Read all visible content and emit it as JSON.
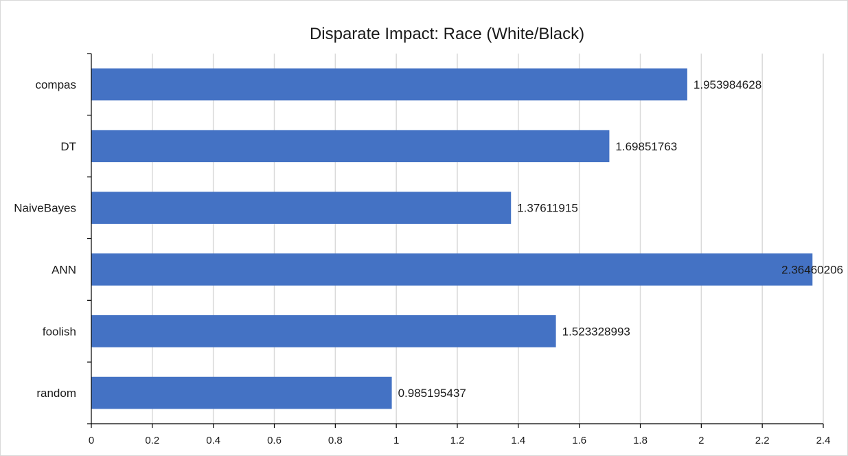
{
  "chart_data": {
    "type": "bar",
    "orientation": "horizontal",
    "title": "Disparate Impact: Race (White/Black)",
    "xlabel": "",
    "ylabel": "",
    "categories": [
      "compas",
      "DT",
      "NaiveBayes",
      "ANN",
      "foolish",
      "random"
    ],
    "values": [
      1.953984628,
      1.69851763,
      1.37611915,
      2.36460206,
      1.523328993,
      0.985195437
    ],
    "value_labels": [
      "1.953984628",
      "1.69851763",
      "1.37611915",
      "2.36460206",
      "1.523328993",
      "0.985195437"
    ],
    "xlim": [
      0,
      2.4
    ],
    "x_ticks": [
      "0",
      "0.2",
      "0.4",
      "0.6",
      "0.8",
      "1",
      "1.2",
      "1.4",
      "1.6",
      "1.8",
      "2",
      "2.2",
      "2.4"
    ],
    "grid": "vertical",
    "legend": "none",
    "colors": {
      "bar": "#4472C4",
      "label_default": "#1a1a1a",
      "label_muted": "#7f7f7f"
    },
    "label_styles": [
      "default",
      "default",
      "default",
      "default",
      "muted",
      "default"
    ]
  }
}
